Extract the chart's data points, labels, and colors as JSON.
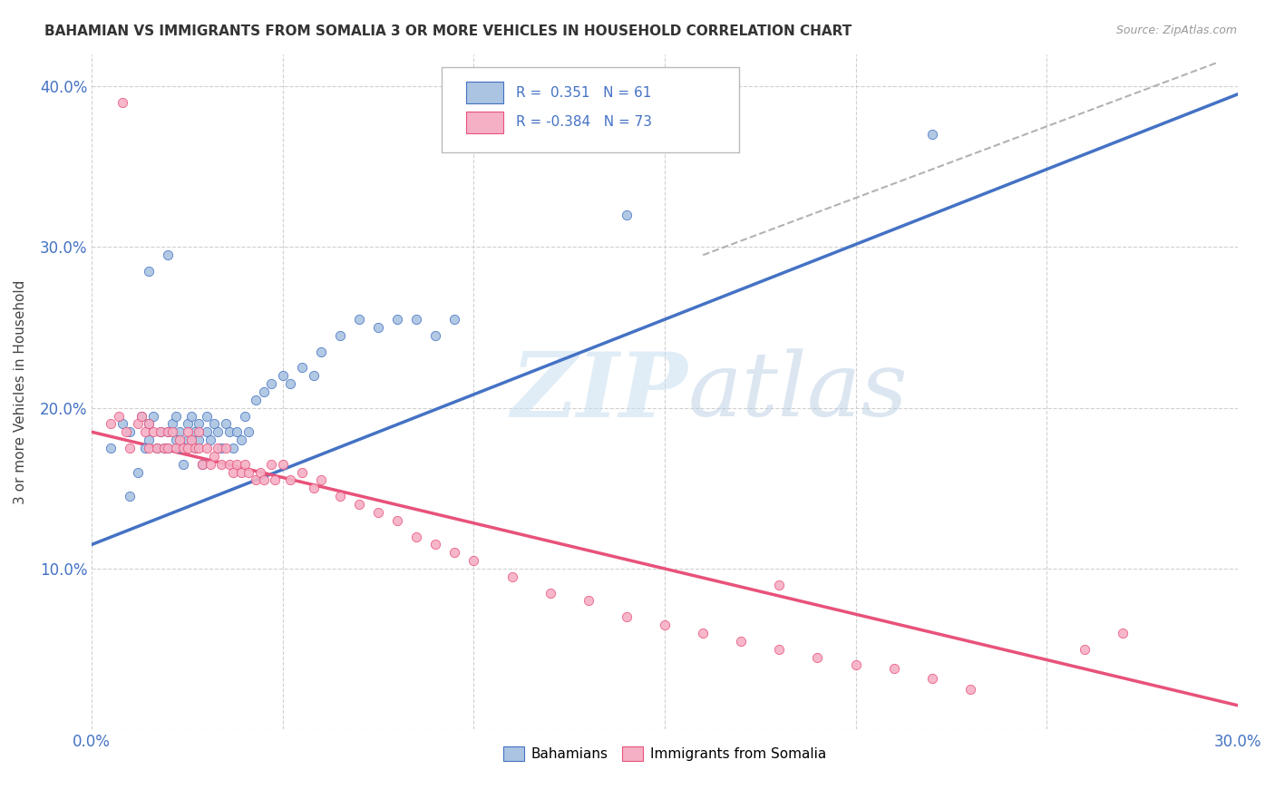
{
  "title": "BAHAMIAN VS IMMIGRANTS FROM SOMALIA 3 OR MORE VEHICLES IN HOUSEHOLD CORRELATION CHART",
  "source": "Source: ZipAtlas.com",
  "xlim": [
    0.0,
    0.3
  ],
  "ylim": [
    0.0,
    0.42
  ],
  "ylabel": "3 or more Vehicles in Household",
  "legend_label1": "Bahamians",
  "legend_label2": "Immigrants from Somalia",
  "r1": 0.351,
  "n1": 61,
  "r2": -0.384,
  "n2": 73,
  "color_blue": "#aac4e2",
  "color_pink": "#f5b0c5",
  "line_blue": "#4472c4",
  "line_pink": "#e8527a",
  "watermark_zip": "ZIP",
  "watermark_atlas": "atlas",
  "blue_line_x": [
    0.0,
    0.3
  ],
  "blue_line_y": [
    0.115,
    0.395
  ],
  "pink_line_x": [
    0.0,
    0.3
  ],
  "pink_line_y": [
    0.185,
    0.015
  ],
  "dash_line_x": [
    0.16,
    0.295
  ],
  "dash_line_y": [
    0.295,
    0.415
  ],
  "blue_dots_x": [
    0.005,
    0.008,
    0.01,
    0.012,
    0.013,
    0.014,
    0.015,
    0.015,
    0.016,
    0.017,
    0.018,
    0.019,
    0.02,
    0.02,
    0.021,
    0.022,
    0.022,
    0.023,
    0.023,
    0.024,
    0.025,
    0.025,
    0.026,
    0.027,
    0.027,
    0.028,
    0.028,
    0.029,
    0.03,
    0.03,
    0.031,
    0.032,
    0.033,
    0.034,
    0.035,
    0.036,
    0.037,
    0.038,
    0.039,
    0.04,
    0.041,
    0.043,
    0.045,
    0.047,
    0.05,
    0.052,
    0.055,
    0.058,
    0.06,
    0.065,
    0.07,
    0.075,
    0.08,
    0.085,
    0.09,
    0.095,
    0.01,
    0.015,
    0.02,
    0.22,
    0.14
  ],
  "blue_dots_y": [
    0.175,
    0.19,
    0.185,
    0.16,
    0.195,
    0.175,
    0.19,
    0.18,
    0.195,
    0.175,
    0.185,
    0.175,
    0.185,
    0.175,
    0.19,
    0.18,
    0.195,
    0.185,
    0.175,
    0.165,
    0.19,
    0.18,
    0.195,
    0.185,
    0.175,
    0.19,
    0.18,
    0.165,
    0.195,
    0.185,
    0.18,
    0.19,
    0.185,
    0.175,
    0.19,
    0.185,
    0.175,
    0.185,
    0.18,
    0.195,
    0.185,
    0.205,
    0.21,
    0.215,
    0.22,
    0.215,
    0.225,
    0.22,
    0.235,
    0.245,
    0.255,
    0.25,
    0.255,
    0.255,
    0.245,
    0.255,
    0.145,
    0.285,
    0.295,
    0.37,
    0.32
  ],
  "pink_dots_x": [
    0.005,
    0.007,
    0.009,
    0.01,
    0.012,
    0.013,
    0.014,
    0.015,
    0.015,
    0.016,
    0.017,
    0.018,
    0.019,
    0.02,
    0.02,
    0.021,
    0.022,
    0.023,
    0.024,
    0.025,
    0.025,
    0.026,
    0.027,
    0.028,
    0.028,
    0.029,
    0.03,
    0.031,
    0.032,
    0.033,
    0.034,
    0.035,
    0.036,
    0.037,
    0.038,
    0.039,
    0.04,
    0.041,
    0.043,
    0.044,
    0.045,
    0.047,
    0.048,
    0.05,
    0.052,
    0.055,
    0.058,
    0.06,
    0.065,
    0.07,
    0.075,
    0.08,
    0.085,
    0.09,
    0.095,
    0.1,
    0.11,
    0.12,
    0.13,
    0.14,
    0.15,
    0.16,
    0.17,
    0.18,
    0.19,
    0.2,
    0.21,
    0.22,
    0.23,
    0.18,
    0.27,
    0.26,
    0.008
  ],
  "pink_dots_y": [
    0.19,
    0.195,
    0.185,
    0.175,
    0.19,
    0.195,
    0.185,
    0.19,
    0.175,
    0.185,
    0.175,
    0.185,
    0.175,
    0.185,
    0.175,
    0.185,
    0.175,
    0.18,
    0.175,
    0.185,
    0.175,
    0.18,
    0.175,
    0.185,
    0.175,
    0.165,
    0.175,
    0.165,
    0.17,
    0.175,
    0.165,
    0.175,
    0.165,
    0.16,
    0.165,
    0.16,
    0.165,
    0.16,
    0.155,
    0.16,
    0.155,
    0.165,
    0.155,
    0.165,
    0.155,
    0.16,
    0.15,
    0.155,
    0.145,
    0.14,
    0.135,
    0.13,
    0.12,
    0.115,
    0.11,
    0.105,
    0.095,
    0.085,
    0.08,
    0.07,
    0.065,
    0.06,
    0.055,
    0.05,
    0.045,
    0.04,
    0.038,
    0.032,
    0.025,
    0.09,
    0.06,
    0.05,
    0.39
  ]
}
